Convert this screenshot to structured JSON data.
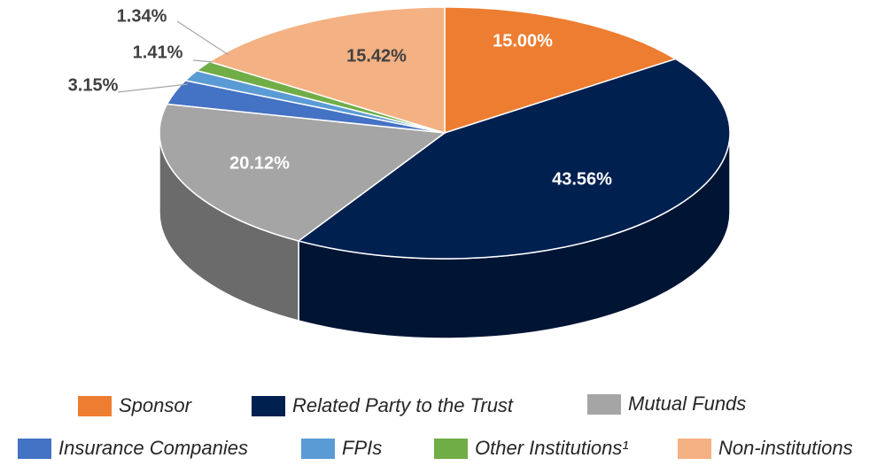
{
  "chart_data": {
    "type": "pie3d",
    "categories": [
      "Sponsor",
      "Related Party to the Trust",
      "Mutual Funds",
      "Insurance Companies",
      "FPIs",
      "Other Institutions¹",
      "Non-institutions"
    ],
    "values": [
      15,
      43.56,
      20.12,
      3.15,
      1.41,
      1.34,
      15.42
    ],
    "value_labels": [
      "15.00%",
      "43.56%",
      "20.12%",
      "3.15%",
      "1.41%",
      "1.34%",
      "15.42%"
    ],
    "colors": [
      "#ed7d31",
      "#002050",
      "#a5a5a5",
      "#4472c4",
      "#5b9bd5",
      "#70ad47",
      "#f4b183"
    ],
    "legend": "bottom"
  }
}
